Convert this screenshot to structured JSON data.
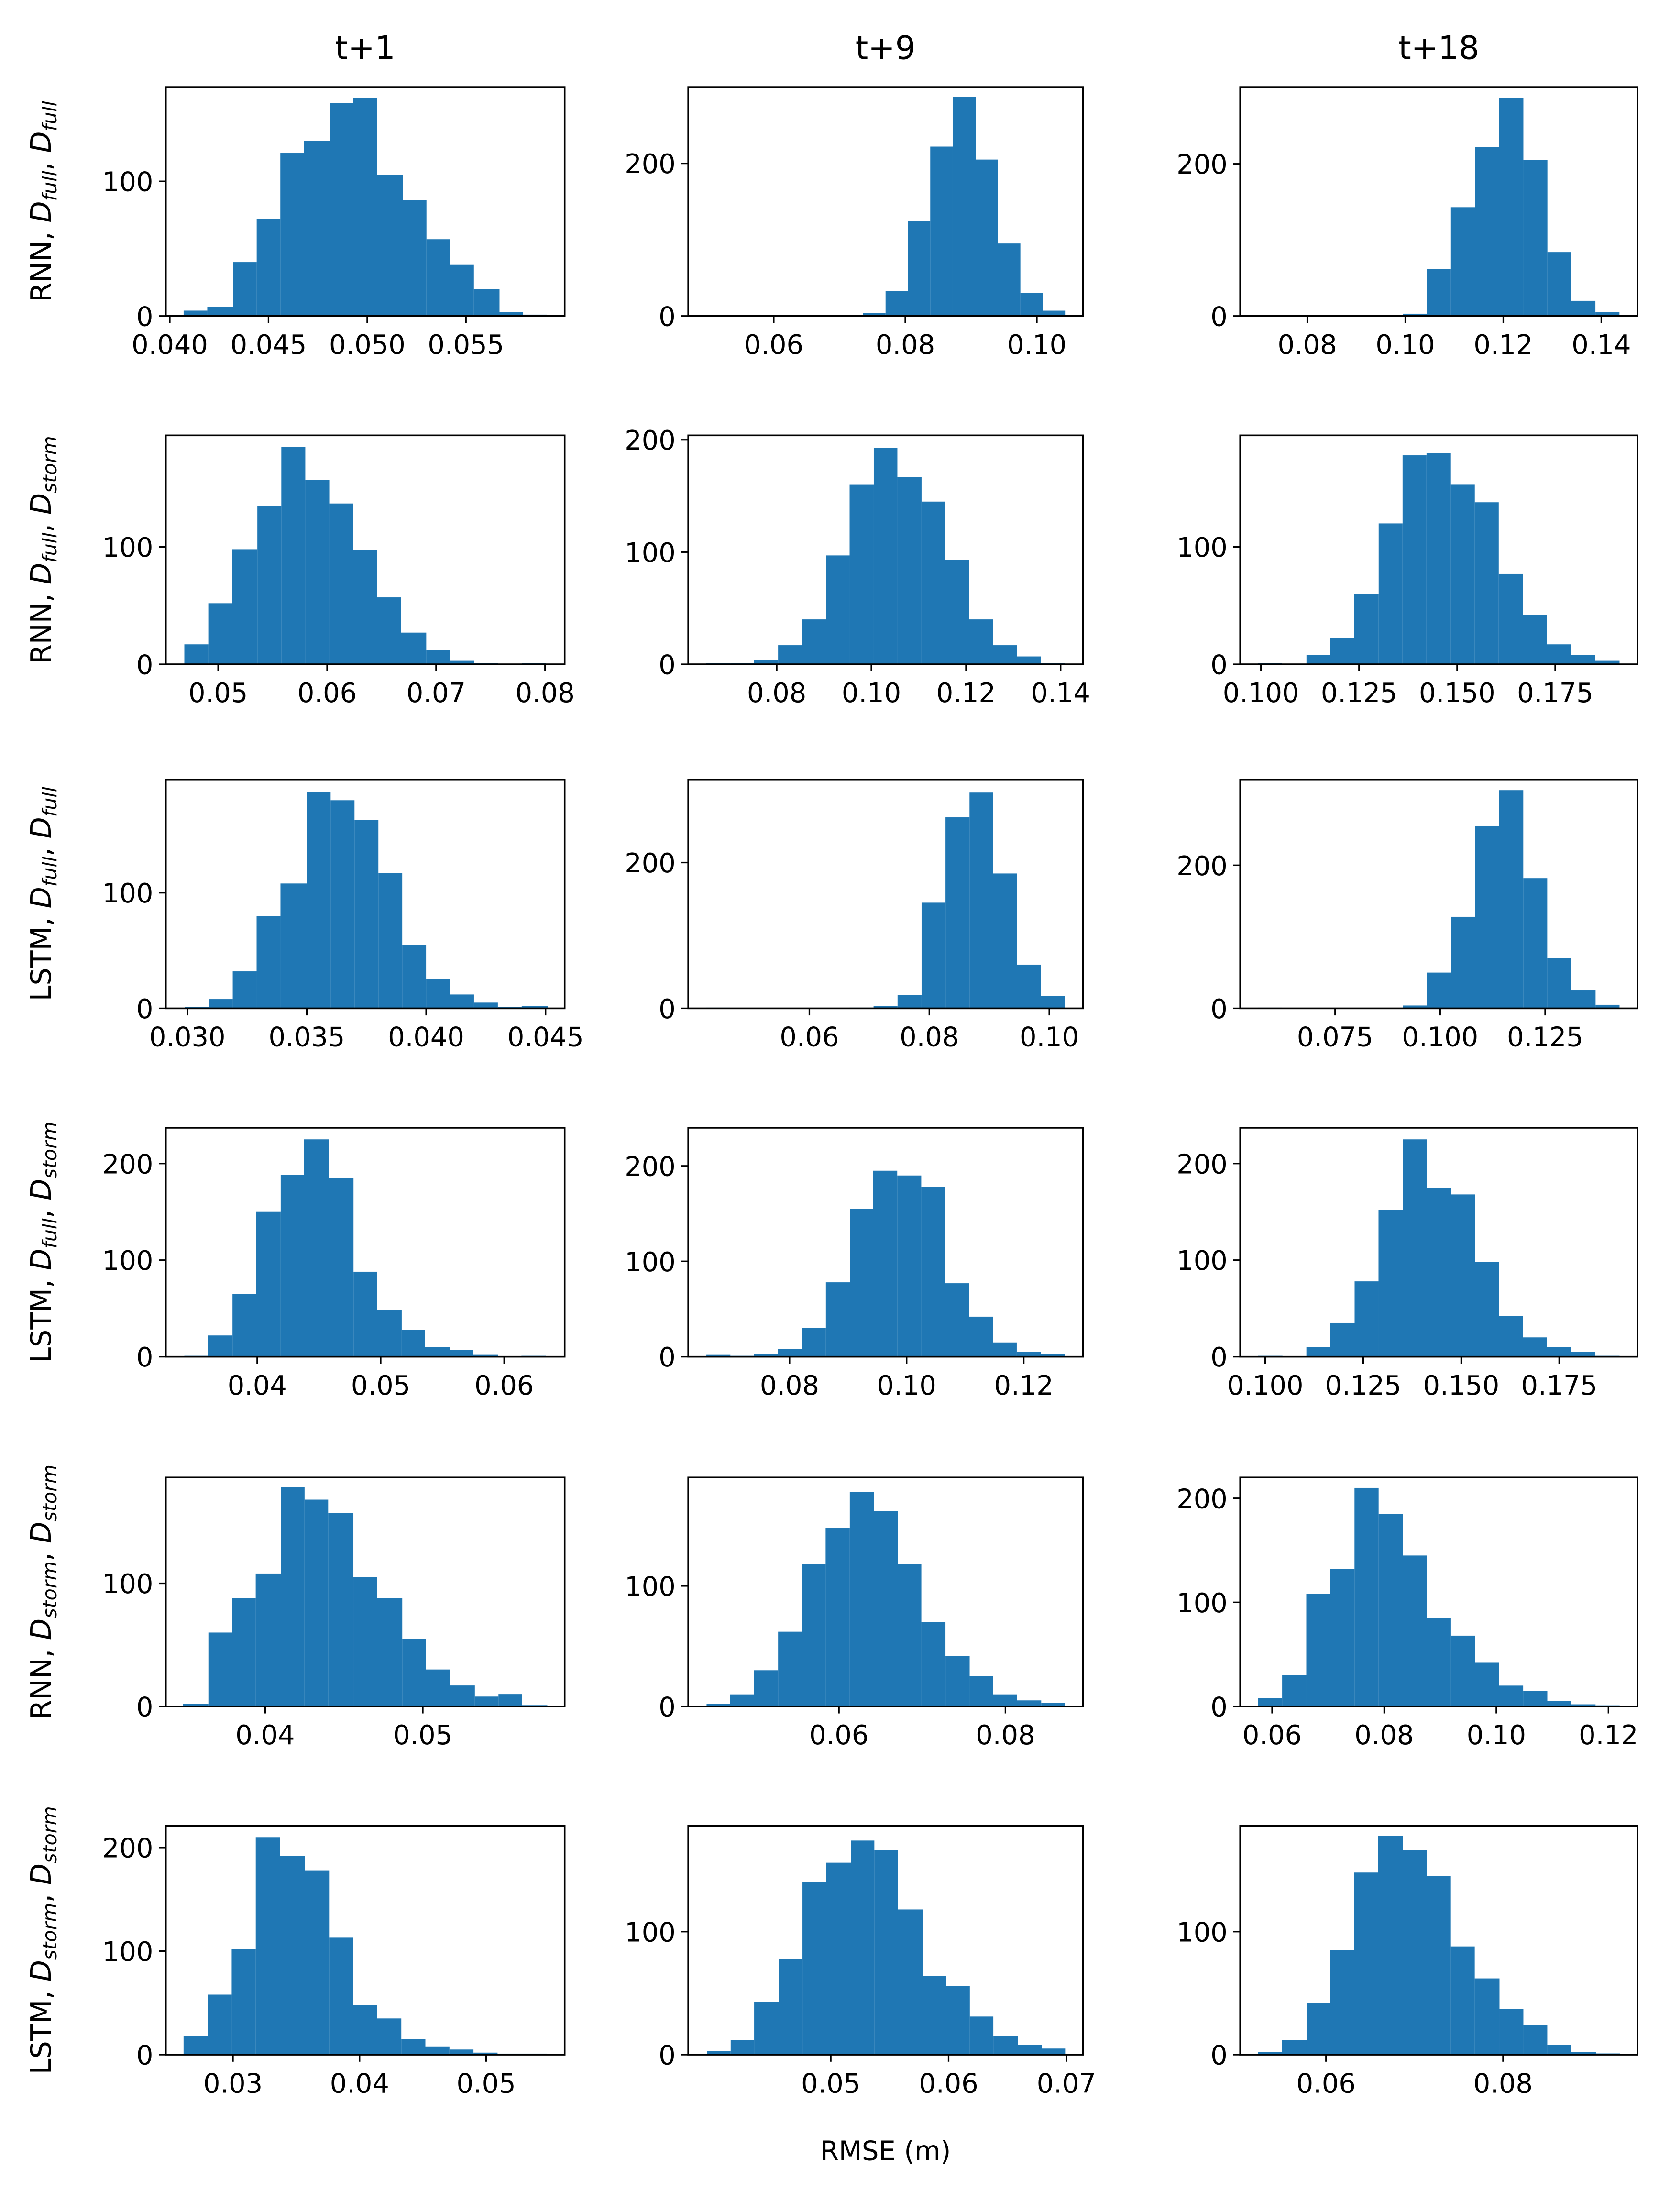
{
  "chart_data": [
    {
      "type": "histogram",
      "title": "t+1",
      "ylabel": [
        {
          "text": "RNN, "
        },
        {
          "text": "D",
          "style": "math"
        },
        {
          "text": "full",
          "style": "sub"
        },
        {
          "text": ", "
        },
        {
          "text": "D",
          "style": "math"
        },
        {
          "text": "full",
          "style": "sub"
        }
      ],
      "bins": [
        0.0407,
        0.0419,
        0.0432,
        0.0444,
        0.0456,
        0.0468,
        0.0481,
        0.0493,
        0.0505,
        0.0518,
        0.053,
        0.0542,
        0.0554,
        0.0567,
        0.0579,
        0.0591
      ],
      "counts": [
        4,
        7,
        40,
        72,
        121,
        130,
        158,
        162,
        105,
        86,
        57,
        38,
        20,
        3,
        1
      ],
      "xlim": [
        0.0398,
        0.06
      ],
      "ylim": [
        0,
        170
      ],
      "xticks": [
        {
          "value": 0.04,
          "label": "0.040"
        },
        0.045,
        {
          "value": 0.05,
          "label": "0.050"
        },
        0.055
      ],
      "yticks": [
        0,
        100
      ],
      "color": "#1f77b4"
    },
    {
      "type": "histogram",
      "title": "t+9",
      "bins": [
        0.0497,
        0.0531,
        0.0565,
        0.0599,
        0.0634,
        0.0668,
        0.0702,
        0.0736,
        0.077,
        0.0804,
        0.0838,
        0.0872,
        0.0907,
        0.0941,
        0.0975,
        0.1009,
        0.1043
      ],
      "counts": [
        1,
        0,
        0,
        0,
        0,
        0,
        1,
        4,
        33,
        124,
        222,
        287,
        205,
        95,
        30,
        7
      ],
      "xlim": [
        0.047,
        0.107
      ],
      "ylim": [
        0,
        300
      ],
      "xticks": [
        0.06,
        0.08,
        {
          "value": 0.1,
          "label": "0.10"
        }
      ],
      "yticks": [
        0,
        200
      ],
      "color": "#1f77b4"
    },
    {
      "type": "histogram",
      "title": "t+18",
      "bins": [
        0.07,
        0.0749,
        0.0798,
        0.0847,
        0.0897,
        0.0946,
        0.0995,
        0.1044,
        0.1093,
        0.1142,
        0.1191,
        0.1241,
        0.129,
        0.1339,
        0.1388,
        0.1437
      ],
      "counts": [
        1,
        0,
        0,
        0,
        0,
        0,
        3,
        62,
        143,
        222,
        287,
        205,
        84,
        20,
        5
      ],
      "xlim": [
        0.0663,
        0.1474
      ],
      "ylim": [
        0,
        301
      ],
      "xticks": [
        0.08,
        {
          "value": 0.1,
          "label": "0.10"
        },
        0.12,
        0.14
      ],
      "yticks": [
        0,
        200
      ],
      "color": "#1f77b4"
    },
    {
      "type": "histogram",
      "ylabel": [
        {
          "text": "RNN, "
        },
        {
          "text": "D",
          "style": "math"
        },
        {
          "text": "full",
          "style": "sub"
        },
        {
          "text": ", "
        },
        {
          "text": "D",
          "style": "math"
        },
        {
          "text": "storm",
          "style": "sub"
        }
      ],
      "bins": [
        0.0469,
        0.0491,
        0.0513,
        0.0536,
        0.0558,
        0.058,
        0.0602,
        0.0624,
        0.0646,
        0.0668,
        0.0691,
        0.0713,
        0.0735,
        0.0757,
        0.0779,
        0.0801
      ],
      "counts": [
        17,
        52,
        98,
        135,
        185,
        157,
        137,
        97,
        57,
        27,
        12,
        3,
        1,
        0,
        1
      ],
      "xlim": [
        0.0452,
        0.0818
      ],
      "ylim": [
        0,
        195
      ],
      "xticks": [
        0.05,
        0.06,
        0.07,
        0.08
      ],
      "yticks": [
        0,
        100
      ],
      "color": "#1f77b4"
    },
    {
      "type": "histogram",
      "bins": [
        0.0651,
        0.0702,
        0.0752,
        0.0803,
        0.0853,
        0.0904,
        0.0954,
        0.1005,
        0.1055,
        0.1106,
        0.1156,
        0.1207,
        0.1257,
        0.1308,
        0.1358,
        0.1409
      ],
      "counts": [
        1,
        1,
        4,
        17,
        40,
        97,
        160,
        193,
        167,
        145,
        93,
        40,
        17,
        7,
        1
      ],
      "xlim": [
        0.0613,
        0.1447
      ],
      "ylim": [
        0,
        204
      ],
      "xticks": [
        0.08,
        {
          "value": 0.1,
          "label": "0.10"
        },
        0.12,
        0.14
      ],
      "yticks": [
        0,
        100,
        200
      ],
      "color": "#1f77b4"
    },
    {
      "type": "histogram",
      "bins": [
        0.0993,
        0.1054,
        0.1116,
        0.1177,
        0.1238,
        0.13,
        0.1361,
        0.1422,
        0.1484,
        0.1545,
        0.1606,
        0.1668,
        0.1729,
        0.179,
        0.1852,
        0.1914
      ],
      "counts": [
        1,
        0,
        8,
        22,
        60,
        120,
        178,
        180,
        153,
        138,
        77,
        42,
        17,
        8,
        3
      ],
      "xlim": [
        0.0947,
        0.196
      ],
      "ylim": [
        0,
        195
      ],
      "xticks": [
        {
          "value": 0.1,
          "label": "0.100"
        },
        0.125,
        {
          "value": 0.15,
          "label": "0.150"
        },
        0.175
      ],
      "yticks": [
        0,
        100
      ],
      "color": "#1f77b4"
    },
    {
      "type": "histogram",
      "ylabel": [
        {
          "text": "LSTM, "
        },
        {
          "text": "D",
          "style": "math"
        },
        {
          "text": "full",
          "style": "sub"
        },
        {
          "text": ", "
        },
        {
          "text": "D",
          "style": "math"
        },
        {
          "text": "full",
          "style": "sub"
        }
      ],
      "bins": [
        0.0299,
        0.0309,
        0.0319,
        0.0329,
        0.0339,
        0.035,
        0.036,
        0.037,
        0.038,
        0.039,
        0.04,
        0.041,
        0.042,
        0.043,
        0.044,
        0.0451
      ],
      "counts": [
        1,
        8,
        32,
        80,
        108,
        187,
        180,
        163,
        117,
        55,
        25,
        12,
        5,
        1,
        2
      ],
      "xlim": [
        0.0291,
        0.0458
      ],
      "ylim": [
        0,
        198
      ],
      "xticks": [
        {
          "value": 0.03,
          "label": "0.030"
        },
        0.035,
        {
          "value": 0.04,
          "label": "0.040"
        },
        0.045
      ],
      "yticks": [
        0,
        100
      ],
      "color": "#1f77b4"
    },
    {
      "type": "histogram",
      "bins": [
        0.0428,
        0.0468,
        0.0508,
        0.0548,
        0.0588,
        0.0627,
        0.0667,
        0.0707,
        0.0747,
        0.0787,
        0.0827,
        0.0867,
        0.0906,
        0.0946,
        0.0986,
        0.1026
      ],
      "counts": [
        1,
        0,
        0,
        0,
        0,
        0,
        1,
        3,
        18,
        145,
        262,
        296,
        185,
        60,
        17
      ],
      "xlim": [
        0.0398,
        0.1056
      ],
      "ylim": [
        0,
        314
      ],
      "xticks": [
        0.06,
        0.08,
        {
          "value": 0.1,
          "label": "0.10"
        }
      ],
      "yticks": [
        0,
        200
      ],
      "color": "#1f77b4"
    },
    {
      "type": "histogram",
      "bins": [
        0.0567,
        0.0624,
        0.0681,
        0.0739,
        0.0796,
        0.0854,
        0.0911,
        0.0968,
        0.1026,
        0.1083,
        0.114,
        0.1198,
        0.1255,
        0.1312,
        0.137,
        0.1427
      ],
      "counts": [
        1,
        0,
        0,
        0,
        0,
        0,
        4,
        50,
        128,
        255,
        305,
        182,
        70,
        25,
        5
      ],
      "xlim": [
        0.0524,
        0.147
      ],
      "ylim": [
        0,
        320
      ],
      "xticks": [
        0.075,
        {
          "value": 0.1,
          "label": "0.100"
        },
        0.125
      ],
      "yticks": [
        0,
        200
      ],
      "color": "#1f77b4"
    },
    {
      "type": "histogram",
      "ylabel": [
        {
          "text": "LSTM, "
        },
        {
          "text": "D",
          "style": "math"
        },
        {
          "text": "full",
          "style": "sub"
        },
        {
          "text": ", "
        },
        {
          "text": "D",
          "style": "math"
        },
        {
          "text": "storm",
          "style": "sub"
        }
      ],
      "bins": [
        0.0341,
        0.036,
        0.038,
        0.0399,
        0.0419,
        0.0438,
        0.0458,
        0.0478,
        0.0497,
        0.0517,
        0.0536,
        0.0556,
        0.0575,
        0.0595,
        0.0614,
        0.0634
      ],
      "counts": [
        1,
        22,
        65,
        150,
        188,
        225,
        185,
        88,
        48,
        28,
        10,
        7,
        2,
        0,
        1
      ],
      "xlim": [
        0.0326,
        0.0649
      ],
      "ylim": [
        0,
        237
      ],
      "xticks": [
        0.04,
        0.05,
        0.06
      ],
      "yticks": [
        0,
        100,
        200
      ],
      "color": "#1f77b4"
    },
    {
      "type": "histogram",
      "bins": [
        0.0658,
        0.0699,
        0.0739,
        0.078,
        0.0821,
        0.0862,
        0.0903,
        0.0943,
        0.0984,
        0.1025,
        0.1066,
        0.1107,
        0.1148,
        0.1188,
        0.1229,
        0.127
      ],
      "counts": [
        2,
        1,
        3,
        8,
        30,
        78,
        155,
        195,
        190,
        178,
        77,
        42,
        15,
        5,
        3
      ],
      "xlim": [
        0.0627,
        0.1301
      ],
      "ylim": [
        0,
        240
      ],
      "xticks": [
        0.08,
        {
          "value": 0.1,
          "label": "0.10"
        },
        0.12
      ],
      "yticks": [
        0,
        100,
        200
      ],
      "color": "#1f77b4"
    },
    {
      "type": "histogram",
      "bins": [
        0.0982,
        0.1044,
        0.1105,
        0.1166,
        0.1228,
        0.1289,
        0.1351,
        0.1412,
        0.1474,
        0.1535,
        0.1596,
        0.1658,
        0.1719,
        0.1781,
        0.1842,
        0.1904
      ],
      "counts": [
        1,
        0,
        10,
        35,
        78,
        152,
        225,
        175,
        168,
        98,
        42,
        20,
        10,
        5,
        1
      ],
      "xlim": [
        0.0936,
        0.195
      ],
      "ylim": [
        0,
        237
      ],
      "xticks": [
        {
          "value": 0.1,
          "label": "0.100"
        },
        0.125,
        {
          "value": 0.15,
          "label": "0.150"
        },
        0.175
      ],
      "yticks": [
        0,
        100,
        200
      ],
      "color": "#1f77b4"
    },
    {
      "type": "histogram",
      "ylabel": [
        {
          "text": "RNN, "
        },
        {
          "text": "D",
          "style": "math"
        },
        {
          "text": "storm",
          "style": "sub"
        },
        {
          "text": ", "
        },
        {
          "text": "D",
          "style": "math"
        },
        {
          "text": "storm",
          "style": "sub"
        }
      ],
      "bins": [
        0.0348,
        0.0364,
        0.0379,
        0.0394,
        0.041,
        0.0425,
        0.044,
        0.0456,
        0.0471,
        0.0487,
        0.0502,
        0.0517,
        0.0533,
        0.0548,
        0.0563,
        0.0579
      ],
      "counts": [
        2,
        60,
        88,
        108,
        178,
        168,
        157,
        105,
        88,
        55,
        30,
        17,
        8,
        10,
        1
      ],
      "xlim": [
        0.0337,
        0.059
      ],
      "ylim": [
        0,
        186
      ],
      "xticks": [
        0.04,
        0.05
      ],
      "yticks": [
        0,
        100
      ],
      "color": "#1f77b4"
    },
    {
      "type": "histogram",
      "bins": [
        0.0441,
        0.0469,
        0.0498,
        0.0527,
        0.0556,
        0.0584,
        0.0613,
        0.0642,
        0.0671,
        0.0699,
        0.0728,
        0.0757,
        0.0785,
        0.0814,
        0.0843,
        0.0871
      ],
      "counts": [
        2,
        10,
        30,
        62,
        118,
        148,
        178,
        162,
        118,
        70,
        42,
        25,
        10,
        5,
        3
      ],
      "xlim": [
        0.0419,
        0.0893
      ],
      "ylim": [
        0,
        190
      ],
      "xticks": [
        0.06,
        0.08
      ],
      "yticks": [
        0,
        100
      ],
      "color": "#1f77b4"
    },
    {
      "type": "histogram",
      "bins": [
        0.0575,
        0.0618,
        0.0661,
        0.0704,
        0.0747,
        0.079,
        0.0833,
        0.0876,
        0.0919,
        0.0962,
        0.1005,
        0.1048,
        0.1091,
        0.1134,
        0.1177,
        0.122
      ],
      "counts": [
        8,
        30,
        108,
        132,
        210,
        185,
        145,
        85,
        68,
        42,
        20,
        15,
        5,
        2,
        1
      ],
      "xlim": [
        0.0543,
        0.1252
      ],
      "ylim": [
        0,
        220
      ],
      "xticks": [
        0.06,
        0.08,
        {
          "value": 0.1,
          "label": "0.10"
        },
        0.12
      ],
      "yticks": [
        0,
        100,
        200
      ],
      "color": "#1f77b4"
    },
    {
      "type": "histogram",
      "ylabel": [
        {
          "text": "LSTM, "
        },
        {
          "text": "D",
          "style": "math"
        },
        {
          "text": "storm",
          "style": "sub"
        },
        {
          "text": ", "
        },
        {
          "text": "D",
          "style": "math"
        },
        {
          "text": "storm",
          "style": "sub"
        }
      ],
      "bins": [
        0.0261,
        0.028,
        0.0299,
        0.0318,
        0.0337,
        0.0357,
        0.0376,
        0.0395,
        0.0414,
        0.0433,
        0.0452,
        0.0471,
        0.049,
        0.0509,
        0.0529,
        0.0548
      ],
      "counts": [
        18,
        58,
        102,
        210,
        192,
        178,
        113,
        48,
        35,
        15,
        8,
        5,
        2,
        1,
        1
      ],
      "xlim": [
        0.0247,
        0.0562
      ],
      "ylim": [
        0,
        221
      ],
      "xticks": [
        0.03,
        0.04,
        0.05
      ],
      "yticks": [
        0,
        100,
        200
      ],
      "color": "#1f77b4"
    },
    {
      "type": "histogram",
      "xlabel": "RMSE (m)",
      "bins": [
        0.0395,
        0.0415,
        0.0435,
        0.0456,
        0.0476,
        0.0496,
        0.0517,
        0.0537,
        0.0557,
        0.0578,
        0.0598,
        0.0618,
        0.0638,
        0.0659,
        0.0679,
        0.0699
      ],
      "counts": [
        3,
        12,
        43,
        78,
        140,
        156,
        174,
        166,
        118,
        64,
        56,
        31,
        15,
        8,
        5
      ],
      "xlim": [
        0.0379,
        0.0714
      ],
      "ylim": [
        0,
        186
      ],
      "xticks": [
        0.05,
        0.06,
        0.07
      ],
      "yticks": [
        0,
        100
      ],
      "color": "#1f77b4"
    },
    {
      "type": "histogram",
      "bins": [
        0.0523,
        0.055,
        0.0578,
        0.0605,
        0.0632,
        0.0659,
        0.0687,
        0.0714,
        0.0741,
        0.0768,
        0.0796,
        0.0823,
        0.085,
        0.0877,
        0.0905,
        0.0932
      ],
      "counts": [
        2,
        12,
        42,
        85,
        148,
        178,
        166,
        145,
        88,
        62,
        37,
        24,
        8,
        2,
        1
      ],
      "xlim": [
        0.0503,
        0.0952
      ],
      "ylim": [
        0,
        186
      ],
      "xticks": [
        0.06,
        0.08
      ],
      "yticks": [
        0,
        100
      ],
      "color": "#1f77b4"
    }
  ]
}
